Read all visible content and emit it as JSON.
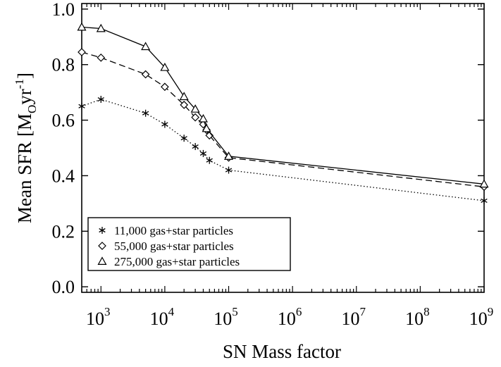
{
  "chart_data": {
    "type": "line",
    "xscale": "log",
    "xlabel": "SN Mass factor",
    "ylabel_main": "Mean SFR [M",
    "ylabel_sub": "O",
    "ylabel_unit": "yr",
    "ylabel_sup": "-1",
    "ylabel_end": "]",
    "xlim": [
      500,
      1000000000
    ],
    "ylim": [
      -0.02,
      1.02
    ],
    "grid": false,
    "legend_position": "bottom-left",
    "x_ticks": [
      {
        "value": 1000,
        "base": "10",
        "exp": "3"
      },
      {
        "value": 10000,
        "base": "10",
        "exp": "4"
      },
      {
        "value": 100000,
        "base": "10",
        "exp": "5"
      },
      {
        "value": 1000000,
        "base": "10",
        "exp": "6"
      },
      {
        "value": 10000000,
        "base": "10",
        "exp": "7"
      },
      {
        "value": 100000000,
        "base": "10",
        "exp": "8"
      },
      {
        "value": 1000000000,
        "base": "10",
        "exp": "9"
      }
    ],
    "y_ticks": [
      {
        "value": 0.0,
        "label": "0.0"
      },
      {
        "value": 0.2,
        "label": "0.2"
      },
      {
        "value": 0.4,
        "label": "0.4"
      },
      {
        "value": 0.6,
        "label": "0.6"
      },
      {
        "value": 0.8,
        "label": "0.8"
      },
      {
        "value": 1.0,
        "label": "1.0"
      }
    ],
    "series": [
      {
        "name": "11,000 gas+star particles",
        "marker": "asterisk",
        "line": "dotted",
        "x": [
          500,
          1000,
          5000,
          10000,
          20000,
          30000,
          40000,
          50000,
          100000,
          1000000000
        ],
        "y": [
          0.65,
          0.675,
          0.625,
          0.585,
          0.535,
          0.505,
          0.48,
          0.455,
          0.42,
          0.31
        ]
      },
      {
        "name": "55,000 gas+star particles",
        "marker": "diamond",
        "line": "dashed",
        "x": [
          500,
          1000,
          5000,
          10000,
          20000,
          30000,
          40000,
          45000,
          50000,
          100000,
          1000000000
        ],
        "y": [
          0.845,
          0.825,
          0.765,
          0.72,
          0.655,
          0.61,
          0.585,
          0.565,
          0.545,
          0.465,
          0.36
        ]
      },
      {
        "name": "275,000 gas+star particles",
        "marker": "triangle",
        "line": "solid",
        "x": [
          500,
          1000,
          5000,
          10000,
          20000,
          30000,
          40000,
          45000,
          100000,
          1000000000
        ],
        "y": [
          0.935,
          0.93,
          0.865,
          0.79,
          0.685,
          0.64,
          0.605,
          0.57,
          0.47,
          0.37
        ]
      }
    ]
  }
}
